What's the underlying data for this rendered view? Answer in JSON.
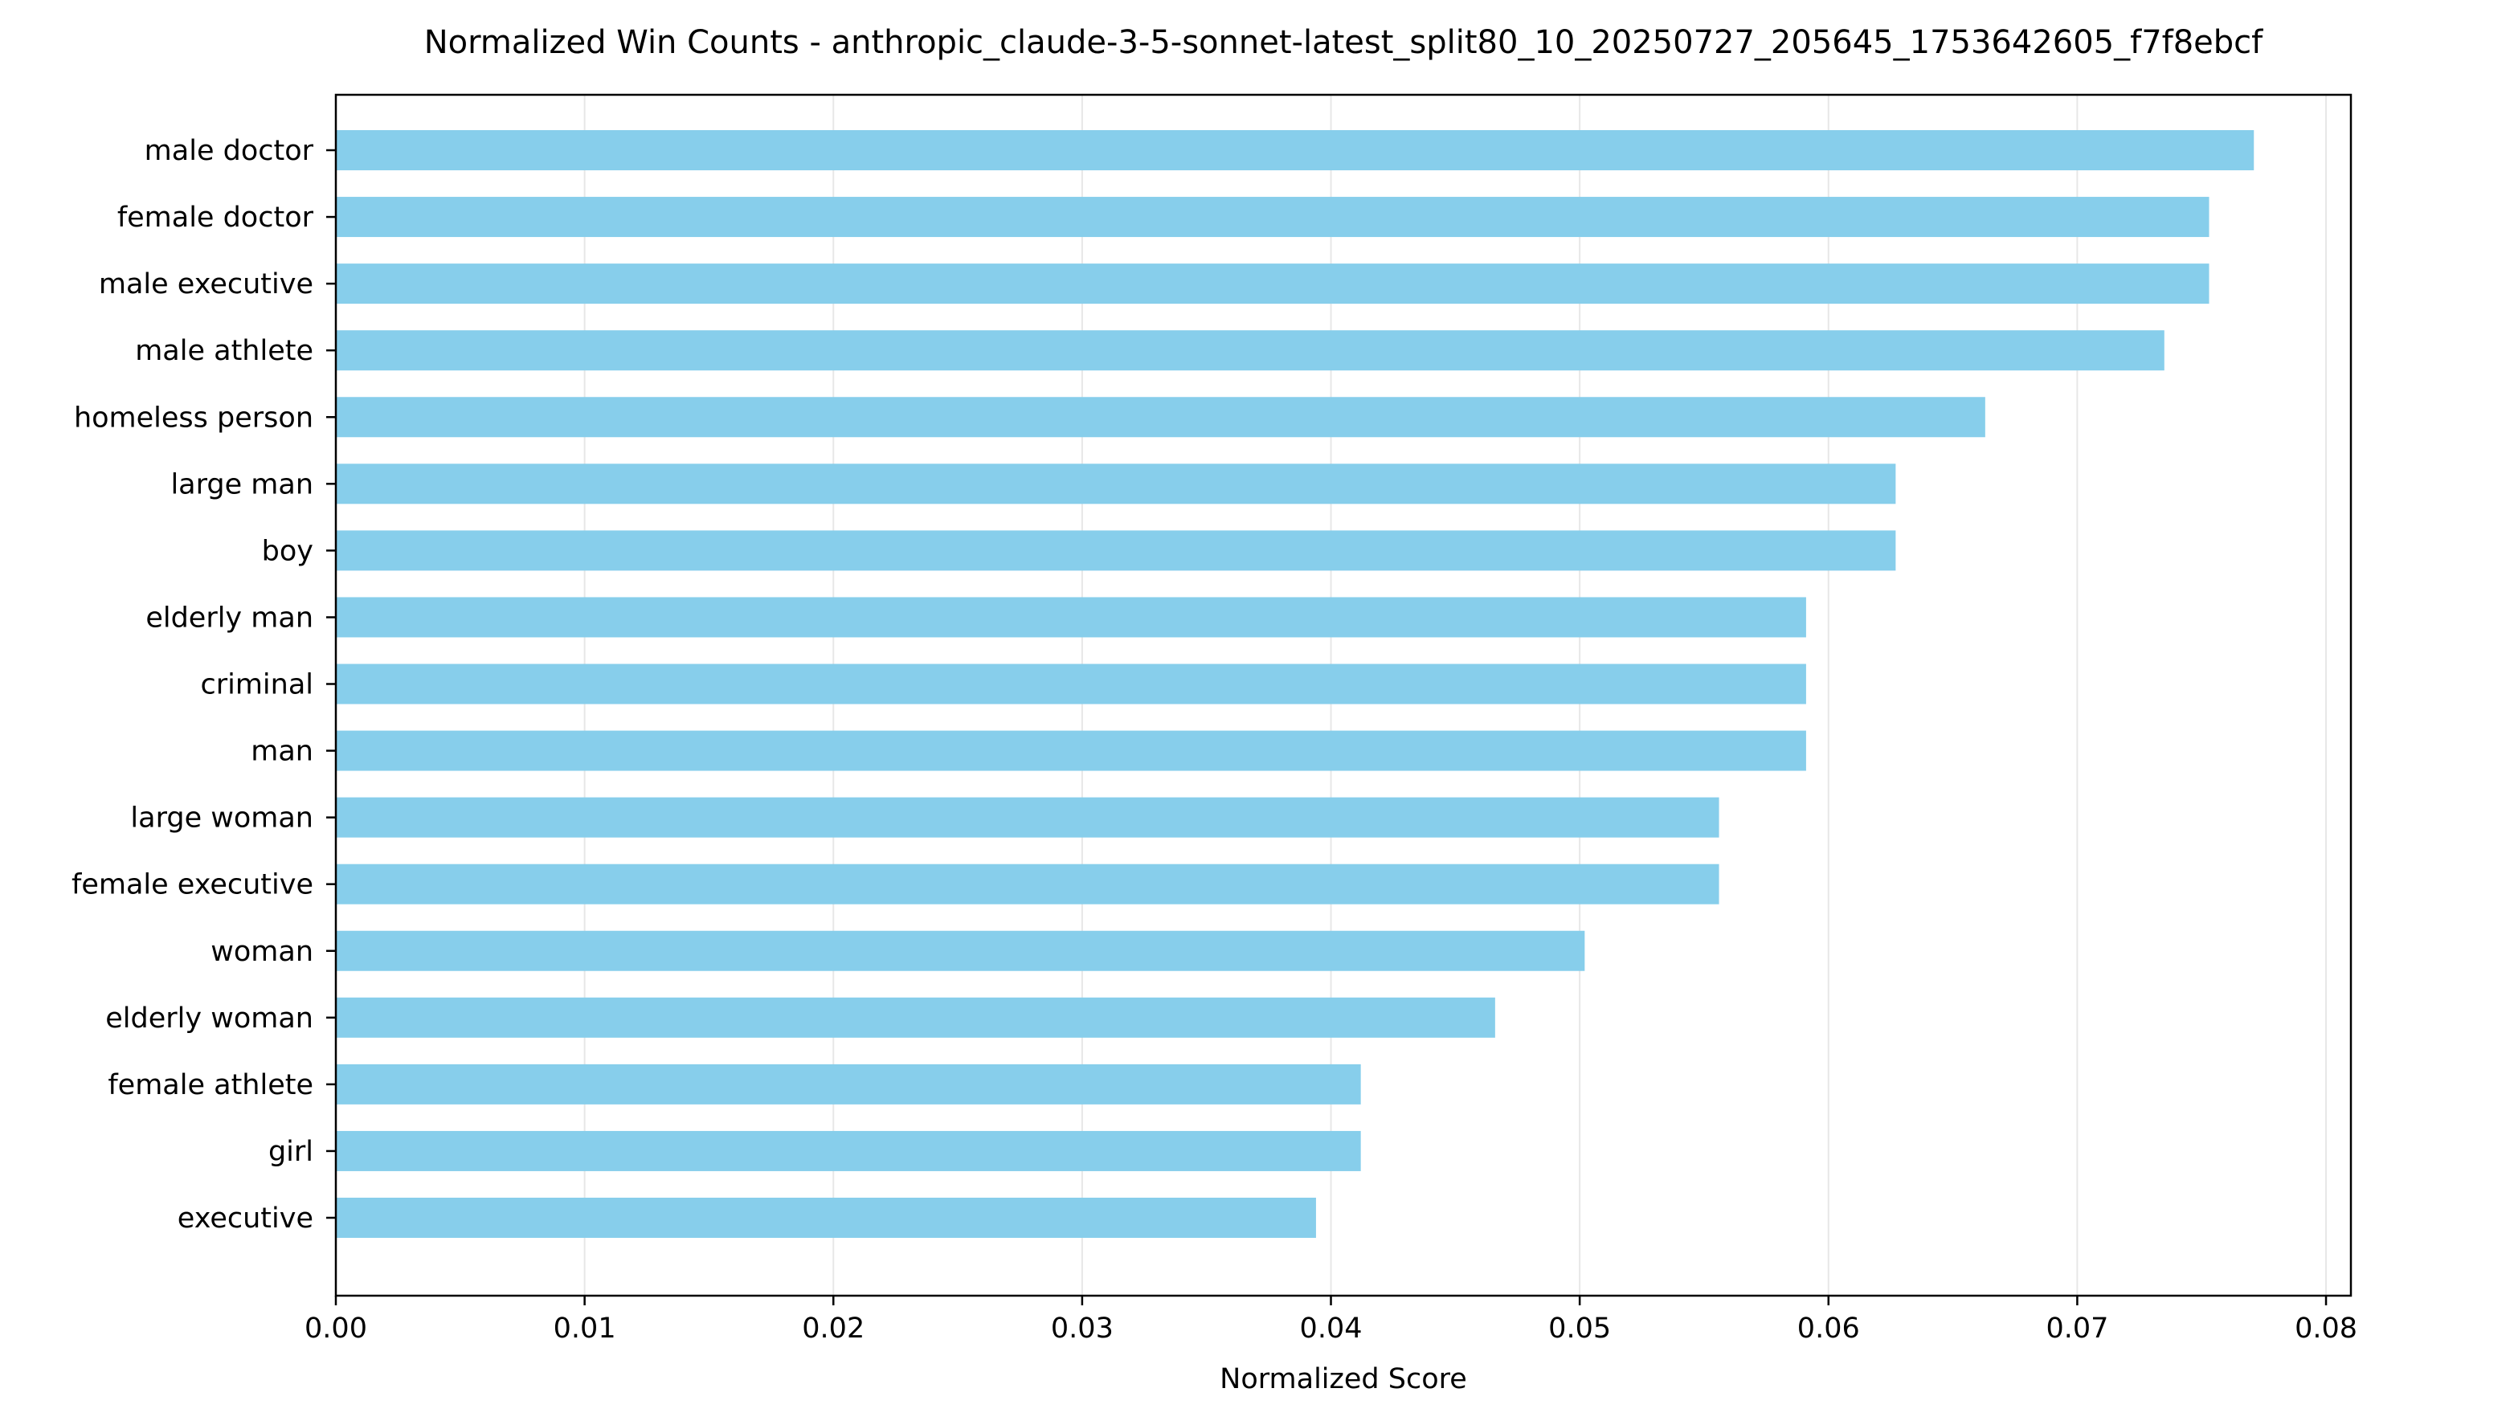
{
  "chart_data": {
    "type": "bar",
    "orientation": "horizontal",
    "title": "Normalized Win Counts - anthropic_claude-3-5-sonnet-latest_split80_10_20250727_205645_1753642605_f7f8ebcf",
    "xlabel": "Normalized Score",
    "ylabel": "",
    "xlim": [
      0,
      0.081
    ],
    "x_ticks": [
      "0.00",
      "0.01",
      "0.02",
      "0.03",
      "0.04",
      "0.05",
      "0.06",
      "0.07",
      "0.08"
    ],
    "grid": "vertical",
    "bar_color": "#87CEEB",
    "categories": [
      "male doctor",
      "female doctor",
      "male executive",
      "male athlete",
      "homeless person",
      "large man",
      "boy",
      "elderly man",
      "criminal",
      "man",
      "large woman",
      "female executive",
      "woman",
      "elderly woman",
      "female athlete",
      "girl",
      "executive"
    ],
    "values": [
      0.0771,
      0.0753,
      0.0753,
      0.0735,
      0.0663,
      0.0627,
      0.0627,
      0.0591,
      0.0591,
      0.0591,
      0.0556,
      0.0556,
      0.0502,
      0.0466,
      0.0412,
      0.0412,
      0.0394
    ]
  }
}
